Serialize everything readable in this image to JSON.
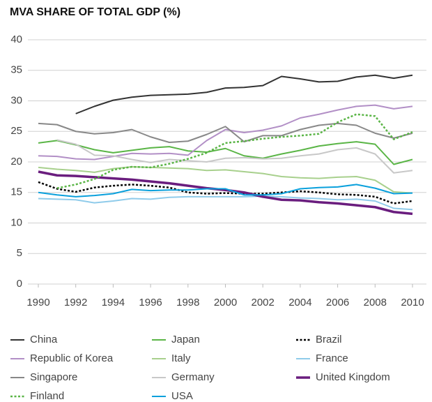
{
  "chart_data": {
    "type": "line",
    "title": "MVA SHARE OF TOTAL GDP (%)",
    "x": [
      1990,
      1991,
      1992,
      1993,
      1994,
      1995,
      1996,
      1997,
      1998,
      1999,
      2000,
      2001,
      2002,
      2003,
      2004,
      2005,
      2006,
      2007,
      2008,
      2009,
      2010
    ],
    "xlim": [
      1990,
      2010
    ],
    "xticks": [
      1990,
      1992,
      1994,
      1996,
      1998,
      2000,
      2002,
      2004,
      2006,
      2008,
      2010
    ],
    "ylim": [
      0,
      40
    ],
    "yticks": [
      0,
      5,
      10,
      15,
      20,
      25,
      30,
      35,
      40
    ],
    "grid": true,
    "series": [
      {
        "name": "China",
        "color": "#333333",
        "style": "solid",
        "linewidth": 2,
        "values": [
          null,
          null,
          27.9,
          29.1,
          30.1,
          30.6,
          30.9,
          31.0,
          31.1,
          31.4,
          32.1,
          32.2,
          32.5,
          34.0,
          33.6,
          33.1,
          33.2,
          33.9,
          34.2,
          33.7,
          34.2
        ]
      },
      {
        "name": "Japan",
        "color": "#5ab546",
        "style": "solid",
        "linewidth": 2,
        "values": [
          23.1,
          23.5,
          22.8,
          22.0,
          21.5,
          21.9,
          22.3,
          22.5,
          21.8,
          21.6,
          22.2,
          21.0,
          20.6,
          21.3,
          21.9,
          22.6,
          23.0,
          23.3,
          22.9,
          19.6,
          20.4
        ]
      },
      {
        "name": "Brazil",
        "color": "#000000",
        "style": "dotted",
        "linewidth": 2.5,
        "values": [
          16.7,
          15.6,
          15.1,
          15.8,
          16.1,
          16.3,
          16.1,
          15.8,
          15.0,
          14.8,
          14.9,
          14.8,
          14.8,
          15.0,
          15.2,
          15.0,
          14.7,
          14.6,
          14.3,
          13.2,
          13.6
        ]
      },
      {
        "name": "Republic of Korea",
        "color": "#b28fc6",
        "style": "solid",
        "linewidth": 2,
        "values": [
          21.0,
          20.9,
          20.5,
          20.4,
          20.9,
          21.4,
          21.3,
          21.4,
          21.1,
          23.5,
          25.3,
          24.8,
          25.2,
          25.9,
          27.2,
          27.8,
          28.5,
          29.1,
          29.3,
          28.7,
          29.1
        ]
      },
      {
        "name": "Italy",
        "color": "#a8d08d",
        "style": "solid",
        "linewidth": 2,
        "values": [
          19.1,
          18.8,
          18.6,
          18.3,
          18.9,
          19.2,
          19.1,
          19.0,
          18.9,
          18.6,
          18.7,
          18.4,
          18.1,
          17.6,
          17.4,
          17.3,
          17.5,
          17.6,
          17.0,
          15.1,
          14.9
        ]
      },
      {
        "name": "France",
        "color": "#8fcbea",
        "style": "solid",
        "linewidth": 2,
        "values": [
          14.0,
          13.9,
          13.8,
          13.3,
          13.6,
          14.0,
          13.9,
          14.2,
          14.3,
          14.3,
          14.3,
          14.3,
          14.4,
          14.3,
          14.1,
          14.0,
          13.8,
          13.9,
          13.6,
          12.4,
          12.2
        ]
      },
      {
        "name": "Singapore",
        "color": "#888888",
        "style": "solid",
        "linewidth": 2,
        "values": [
          26.3,
          26.1,
          25.0,
          24.6,
          24.8,
          25.3,
          24.1,
          23.2,
          23.4,
          24.5,
          25.8,
          23.3,
          24.3,
          24.3,
          25.3,
          26.0,
          26.3,
          26.0,
          24.7,
          23.9,
          24.7
        ]
      },
      {
        "name": "Germany",
        "color": "#c8c8c8",
        "style": "solid",
        "linewidth": 2,
        "values": [
          null,
          23.6,
          22.9,
          21.1,
          21.0,
          20.4,
          19.9,
          20.4,
          20.2,
          20.0,
          20.6,
          20.7,
          20.5,
          20.6,
          21.0,
          21.3,
          22.0,
          22.3,
          21.3,
          18.2,
          18.6
        ]
      },
      {
        "name": "United Kingdom",
        "color": "#6a1d7e",
        "style": "solid",
        "linewidth": 3.5,
        "values": [
          18.4,
          17.8,
          17.7,
          17.5,
          17.3,
          17.1,
          16.8,
          16.5,
          16.1,
          15.7,
          15.4,
          15.0,
          14.3,
          13.8,
          13.7,
          13.4,
          13.2,
          12.9,
          12.6,
          11.8,
          11.5
        ]
      },
      {
        "name": "Finland",
        "color": "#5ab546",
        "style": "dotted",
        "linewidth": 2.5,
        "values": [
          null,
          15.7,
          16.3,
          17.2,
          18.7,
          19.2,
          19.1,
          19.7,
          20.5,
          21.5,
          23.1,
          23.4,
          23.8,
          24.1,
          24.3,
          24.6,
          26.5,
          27.8,
          27.5,
          23.7,
          24.9
        ]
      },
      {
        "name": "USA",
        "color": "#0aa0dc",
        "style": "solid",
        "linewidth": 2,
        "values": [
          15.0,
          14.6,
          14.3,
          14.5,
          14.8,
          15.5,
          15.3,
          15.4,
          15.4,
          15.6,
          15.6,
          14.6,
          14.6,
          14.8,
          15.6,
          15.8,
          15.9,
          16.3,
          15.7,
          14.8,
          14.9
        ]
      }
    ]
  }
}
